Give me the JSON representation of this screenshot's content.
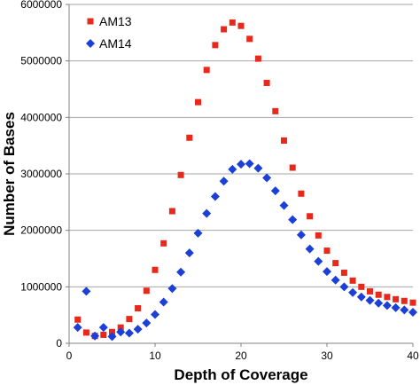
{
  "chart_data": {
    "type": "scatter",
    "title": "",
    "xlabel": "Depth of Coverage",
    "ylabel": "Number of Bases",
    "xlim": [
      0,
      40
    ],
    "ylim": [
      0,
      6000000
    ],
    "xticks": [
      0,
      10,
      20,
      30,
      40
    ],
    "yticks": [
      0,
      1000000,
      2000000,
      3000000,
      4000000,
      5000000,
      6000000
    ],
    "xtick_labels": [
      "0",
      "10",
      "20",
      "30",
      "40"
    ],
    "ytick_labels": [
      "0",
      "1000000",
      "2000000",
      "3000000",
      "4000000",
      "5000000",
      "6000000"
    ],
    "grid": "horizontal",
    "legend": "top-left",
    "series": [
      {
        "name": "AM13",
        "marker": "square",
        "color": "#e8281a",
        "x": [
          1,
          2,
          3,
          4,
          5,
          6,
          7,
          8,
          9,
          10,
          11,
          12,
          13,
          14,
          15,
          16,
          17,
          18,
          19,
          20,
          21,
          22,
          23,
          24,
          25,
          26,
          27,
          28,
          29,
          30,
          31,
          32,
          33,
          34,
          35,
          36,
          37,
          38,
          39,
          40
        ],
        "y": [
          420000,
          190000,
          130000,
          150000,
          200000,
          280000,
          430000,
          620000,
          930000,
          1300000,
          1770000,
          2340000,
          2980000,
          3640000,
          4270000,
          4840000,
          5280000,
          5560000,
          5680000,
          5620000,
          5390000,
          5040000,
          4610000,
          4110000,
          3590000,
          3110000,
          2650000,
          2250000,
          1910000,
          1640000,
          1420000,
          1250000,
          1110000,
          1000000,
          920000,
          860000,
          820000,
          780000,
          750000,
          720000
        ]
      },
      {
        "name": "AM14",
        "marker": "diamond",
        "color": "#1c3fd8",
        "x": [
          1,
          2,
          3,
          4,
          5,
          6,
          7,
          8,
          9,
          10,
          11,
          12,
          13,
          14,
          15,
          16,
          17,
          18,
          19,
          20,
          21,
          22,
          23,
          24,
          25,
          26,
          27,
          28,
          29,
          30,
          31,
          32,
          33,
          34,
          35,
          36,
          37,
          38,
          39,
          40
        ],
        "y": [
          280000,
          920000,
          130000,
          280000,
          120000,
          200000,
          180000,
          250000,
          360000,
          510000,
          730000,
          970000,
          1260000,
          1600000,
          1950000,
          2300000,
          2600000,
          2870000,
          3080000,
          3170000,
          3180000,
          3100000,
          2930000,
          2700000,
          2440000,
          2190000,
          1920000,
          1670000,
          1450000,
          1270000,
          1120000,
          1000000,
          900000,
          820000,
          760000,
          710000,
          670000,
          630000,
          590000,
          550000
        ]
      }
    ]
  }
}
